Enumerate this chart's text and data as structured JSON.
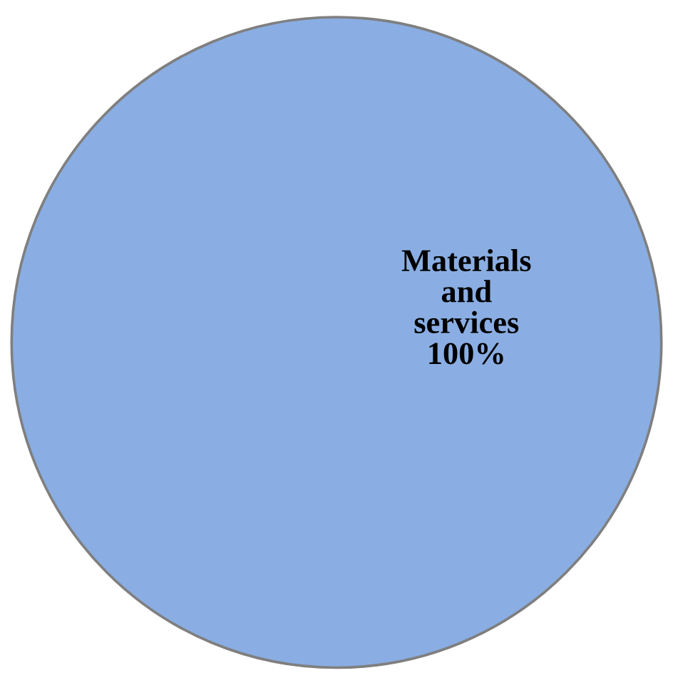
{
  "chart_data": {
    "type": "pie",
    "categories": [
      "Materials and services"
    ],
    "values": [
      100
    ],
    "colors": [
      "#8aaee3"
    ],
    "value_labels": [
      "100%"
    ]
  }
}
